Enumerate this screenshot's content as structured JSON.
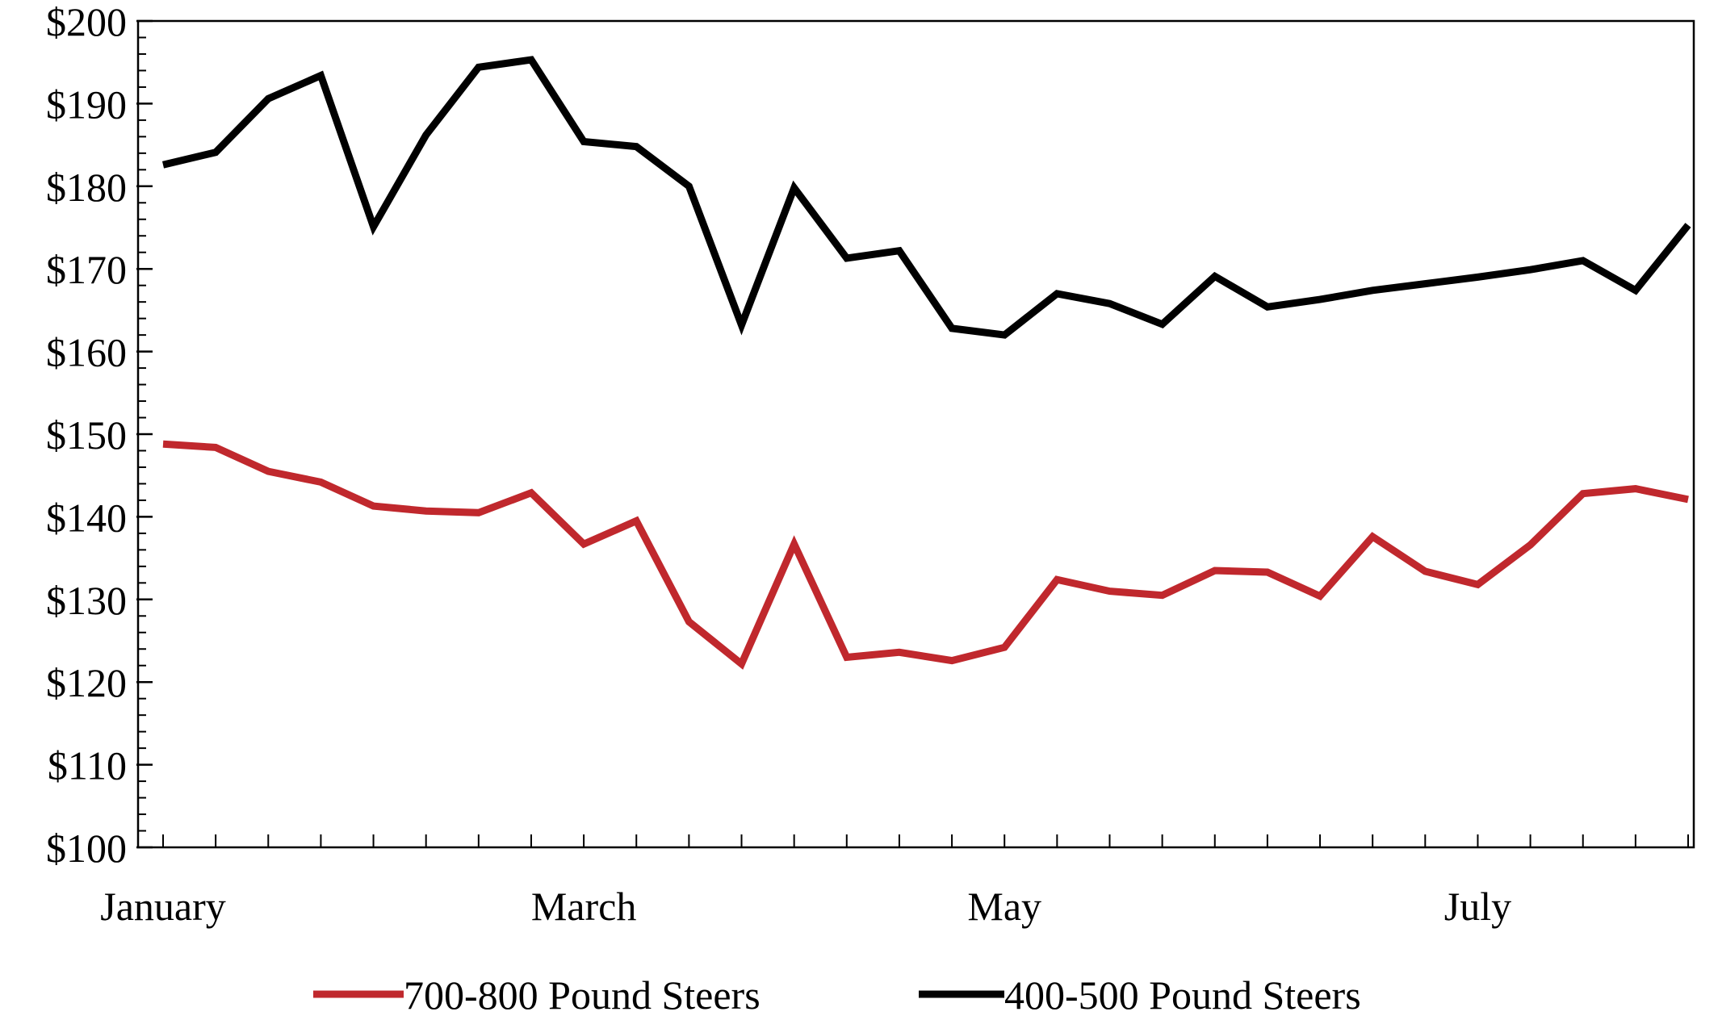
{
  "chart_data": {
    "type": "line",
    "title": "",
    "xlabel": "",
    "ylabel": "",
    "ylim": [
      100,
      200
    ],
    "y_tick_values": [
      100,
      110,
      120,
      130,
      140,
      150,
      160,
      170,
      180,
      190,
      200
    ],
    "y_tick_labels": [
      "$100",
      "$110",
      "$120",
      "$130",
      "$140",
      "$150",
      "$160",
      "$170",
      "$180",
      "$190",
      "$200"
    ],
    "x_month_labels": [
      "January",
      "March",
      "May",
      "July"
    ],
    "x_month_label_at_week": [
      0,
      8,
      16,
      25
    ],
    "x_week_count": 30,
    "legend_position": "bottom",
    "grid": false,
    "series": [
      {
        "name": "700-800 Pound Steers",
        "color": "#c0282d",
        "values": [
          148.8,
          148.4,
          145.5,
          144.2,
          141.3,
          140.7,
          140.5,
          142.9,
          136.7,
          139.5,
          127.3,
          122.2,
          136.7,
          123.0,
          123.6,
          122.6,
          124.2,
          132.4,
          131.0,
          130.5,
          133.5,
          133.3,
          130.4,
          137.6,
          133.4,
          131.8,
          136.6,
          142.8,
          143.4,
          142.1
        ]
      },
      {
        "name": "400-500 Pound Steers",
        "color": "#000000",
        "values": [
          182.6,
          184.1,
          190.6,
          193.4,
          175.1,
          186.2,
          194.4,
          195.3,
          185.4,
          184.8,
          180.0,
          163.2,
          179.8,
          171.3,
          172.2,
          162.8,
          162.0,
          167.0,
          165.8,
          163.3,
          169.1,
          165.4,
          166.3,
          167.4,
          168.2,
          169.0,
          169.9,
          171.0,
          167.4,
          175.3
        ]
      }
    ]
  }
}
